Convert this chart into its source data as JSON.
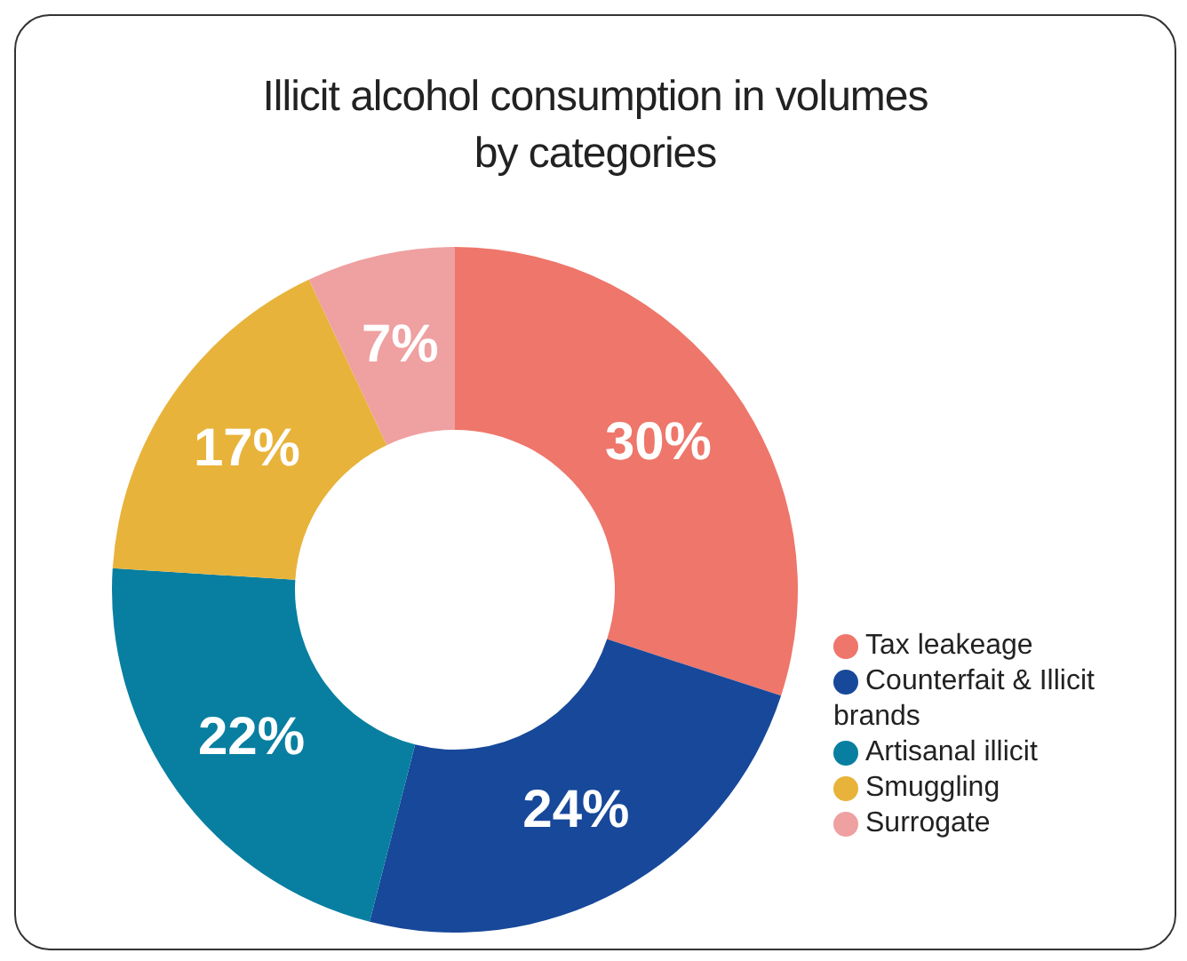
{
  "chart_data": {
    "type": "donut",
    "title": "Illicit alcohol consumption in volumes by categories",
    "categories": [
      "Tax leakeage",
      "Counterfait & Illicit brands",
      "Artisanal illicit",
      "Smuggling",
      "Surrogate"
    ],
    "values": [
      30,
      24,
      22,
      17,
      7
    ],
    "colors": [
      "#ee766a",
      "#17489a",
      "#087fa0",
      "#e8b33a",
      "#efa0a0"
    ],
    "value_labels": [
      "30%",
      "24%",
      "22%",
      "17%",
      "7%"
    ],
    "legend": "right"
  }
}
